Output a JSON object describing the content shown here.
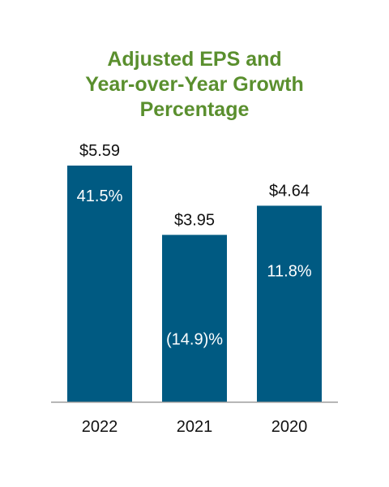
{
  "title_lines": [
    "Adjusted EPS and",
    "Year-over-Year Growth",
    "Percentage"
  ],
  "colors": {
    "title": "#5a8f2e",
    "bar": "#005a82",
    "axis": "#9a9a9a",
    "text": "#111111",
    "inner_text": "#ffffff"
  },
  "chart_data": {
    "type": "bar",
    "title": "Adjusted EPS and Year-over-Year Growth Percentage",
    "categories": [
      "2022",
      "2021",
      "2020"
    ],
    "values": [
      5.59,
      3.95,
      4.64
    ],
    "value_labels": [
      "$5.59",
      "$3.95",
      "$4.64"
    ],
    "growth_labels": [
      "41.5%",
      "(14.9)%",
      "11.8%"
    ],
    "growth_values": [
      41.5,
      -14.9,
      11.8
    ],
    "xlabel": "",
    "ylabel": "",
    "grid": false,
    "legend": "none"
  }
}
